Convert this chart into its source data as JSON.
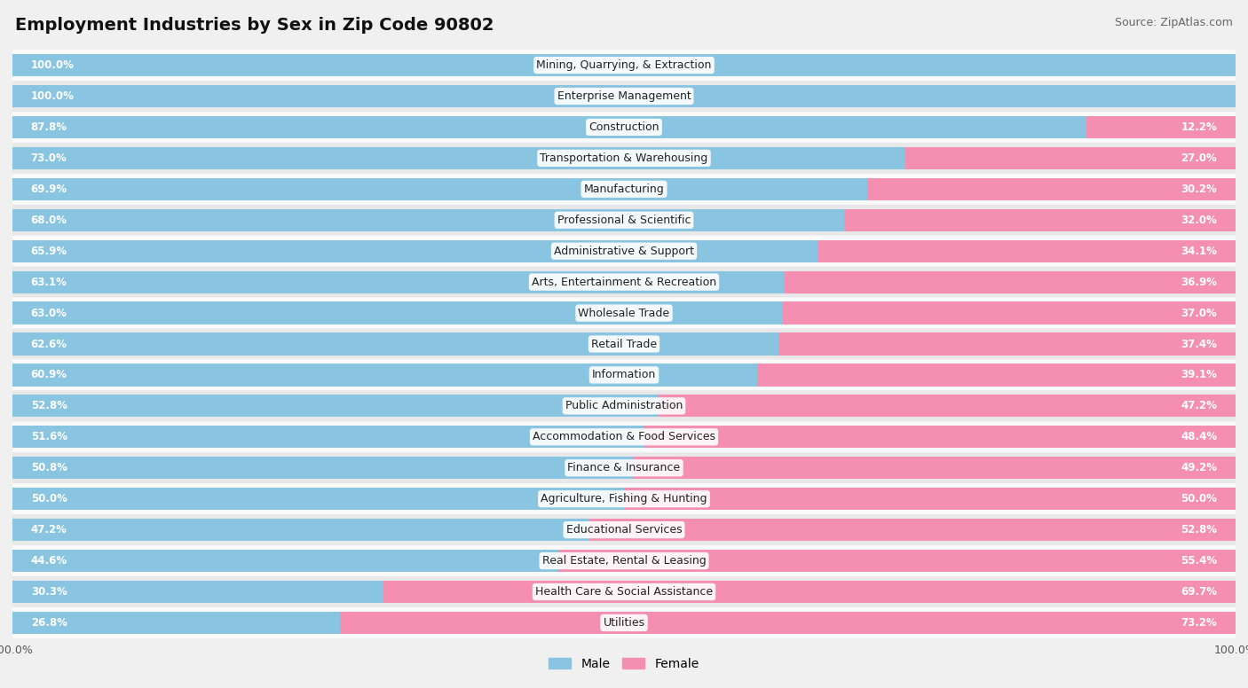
{
  "title": "Employment Industries by Sex in Zip Code 90802",
  "source": "Source: ZipAtlas.com",
  "industries": [
    {
      "name": "Mining, Quarrying, & Extraction",
      "male": 100.0,
      "female": 0.0
    },
    {
      "name": "Enterprise Management",
      "male": 100.0,
      "female": 0.0
    },
    {
      "name": "Construction",
      "male": 87.8,
      "female": 12.2
    },
    {
      "name": "Transportation & Warehousing",
      "male": 73.0,
      "female": 27.0
    },
    {
      "name": "Manufacturing",
      "male": 69.9,
      "female": 30.2
    },
    {
      "name": "Professional & Scientific",
      "male": 68.0,
      "female": 32.0
    },
    {
      "name": "Administrative & Support",
      "male": 65.9,
      "female": 34.1
    },
    {
      "name": "Arts, Entertainment & Recreation",
      "male": 63.1,
      "female": 36.9
    },
    {
      "name": "Wholesale Trade",
      "male": 63.0,
      "female": 37.0
    },
    {
      "name": "Retail Trade",
      "male": 62.6,
      "female": 37.4
    },
    {
      "name": "Information",
      "male": 60.9,
      "female": 39.1
    },
    {
      "name": "Public Administration",
      "male": 52.8,
      "female": 47.2
    },
    {
      "name": "Accommodation & Food Services",
      "male": 51.6,
      "female": 48.4
    },
    {
      "name": "Finance & Insurance",
      "male": 50.8,
      "female": 49.2
    },
    {
      "name": "Agriculture, Fishing & Hunting",
      "male": 50.0,
      "female": 50.0
    },
    {
      "name": "Educational Services",
      "male": 47.2,
      "female": 52.8
    },
    {
      "name": "Real Estate, Rental & Leasing",
      "male": 44.6,
      "female": 55.4
    },
    {
      "name": "Health Care & Social Assistance",
      "male": 30.3,
      "female": 69.7
    },
    {
      "name": "Utilities",
      "male": 26.8,
      "female": 73.2
    }
  ],
  "male_color": "#89c4e1",
  "female_color": "#f48fb1",
  "female_color_bright": "#f06292",
  "bg_color": "#f0f0f0",
  "row_bg_light": "#fafafa",
  "row_bg_dark": "#e8e8e8",
  "bar_height": 0.72,
  "title_fontsize": 14,
  "label_fontsize": 9,
  "source_fontsize": 9,
  "pct_fontsize": 8.5
}
